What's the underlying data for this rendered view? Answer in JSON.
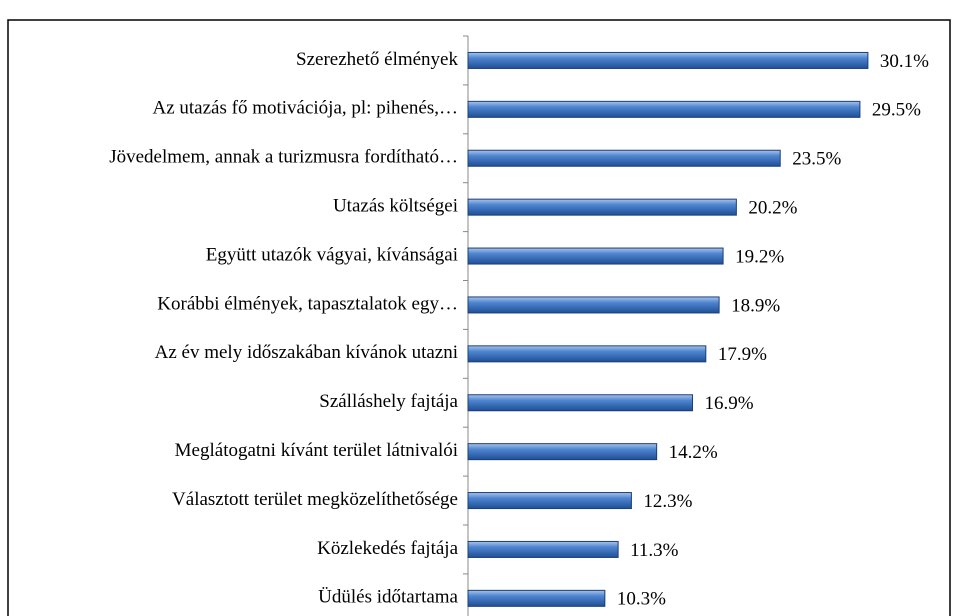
{
  "chart_data": {
    "type": "bar",
    "orientation": "horizontal",
    "categories": [
      "Szerezhető élmények",
      "Az utazás fő motivációja, pl: pihenés,…",
      "Jövedelmem, annak a turizmusra fordítható…",
      "Utazás költségei",
      "Együtt utazók vágyai, kívánságai",
      "Korábbi élmények, tapasztalatok egy…",
      "Az év mely időszakában kívánok utazni",
      "Szálláshely fajtája",
      "Meglátogatni kívánt terület látnivalói",
      "Választott terület megközelíthetősége",
      "Közlekedés fajtája",
      "Üdülés időtartama"
    ],
    "values": [
      30.1,
      29.5,
      23.5,
      20.2,
      19.2,
      18.9,
      17.9,
      16.9,
      14.2,
      12.3,
      11.3,
      10.3
    ],
    "value_labels": [
      "30.1%",
      "29.5%",
      "23.5%",
      "20.2%",
      "19.2%",
      "18.9%",
      "17.9%",
      "16.9%",
      "14.2%",
      "12.3%",
      "11.3%",
      "10.3%"
    ],
    "color": "#3f74c0",
    "xlim": [
      0,
      35
    ]
  }
}
